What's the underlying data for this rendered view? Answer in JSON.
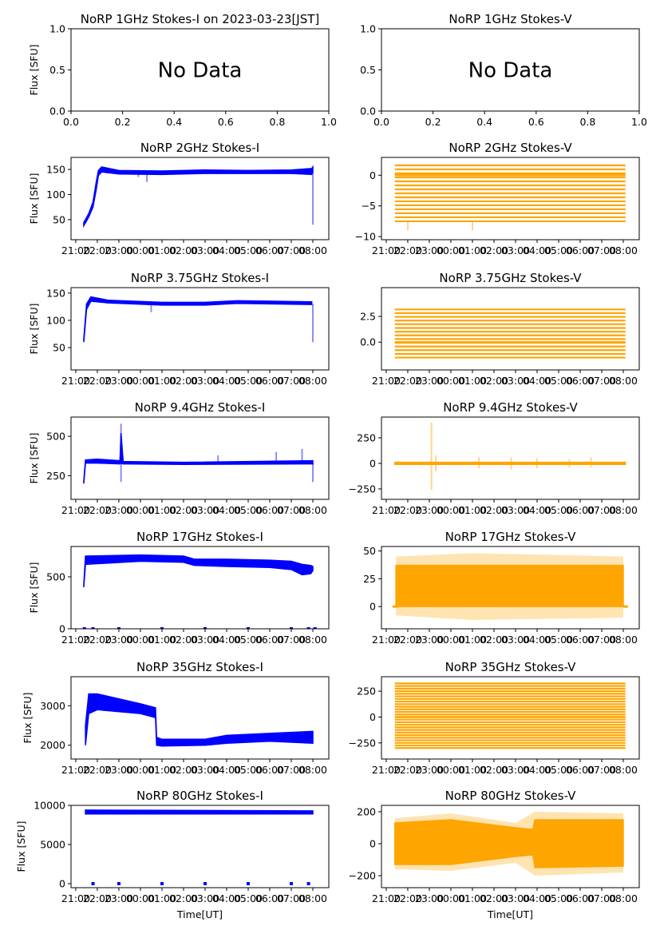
{
  "chart_data": [
    {
      "type": "scatter",
      "title": "NoRP 1GHz Stokes-I on 2023-03-23[JST]",
      "ylabel": "Flux [SFU]",
      "xlabel": "",
      "no_data": "No Data",
      "xmode": "unit",
      "xlim": [
        0,
        1
      ],
      "ylim": [
        0,
        1
      ],
      "yticks": [
        0,
        0.5,
        1
      ],
      "ytick_labels": [
        "0.0",
        "0.5",
        "1.0"
      ],
      "xticks": [
        0,
        0.2,
        0.4,
        0.6,
        0.8,
        1
      ],
      "xtick_labels": [
        "0.0",
        "0.2",
        "0.4",
        "0.6",
        "0.8",
        "1.0"
      ]
    },
    {
      "type": "scatter",
      "title": "NoRP 1GHz Stokes-V",
      "ylabel": "",
      "xlabel": "",
      "no_data": "No Data",
      "xmode": "unit",
      "xlim": [
        0,
        1
      ],
      "ylim": [
        0,
        1
      ],
      "yticks": [
        0,
        0.5,
        1
      ],
      "ytick_labels": [
        "0.0",
        "0.5",
        "1.0"
      ],
      "xticks": [
        0,
        0.2,
        0.4,
        0.6,
        0.8,
        1
      ],
      "xtick_labels": [
        "0.0",
        "0.2",
        "0.4",
        "0.6",
        "0.8",
        "1.0"
      ]
    },
    {
      "type": "scatter",
      "title": "NoRP 2GHz Stokes-I",
      "ylabel": "Flux [SFU]",
      "xlabel": "",
      "color": "#0000ff",
      "ylim": [
        10,
        174
      ],
      "yticks": [
        50,
        100,
        150
      ],
      "ytick_labels": [
        "50",
        "100",
        "150"
      ],
      "envelope": [
        [
          0.37,
          38,
          44
        ],
        [
          0.6,
          55,
          62
        ],
        [
          0.8,
          75,
          85
        ],
        [
          0.95,
          110,
          125
        ],
        [
          1.05,
          138,
          148
        ],
        [
          1.2,
          145,
          155
        ],
        [
          2,
          141,
          148
        ],
        [
          4,
          140,
          147
        ],
        [
          6,
          142,
          149
        ],
        [
          8,
          142,
          148
        ],
        [
          10,
          142,
          149
        ],
        [
          10.95,
          140,
          152
        ],
        [
          11.0,
          145,
          155
        ]
      ],
      "outliers": [
        [
          11.0,
          40,
          145
        ],
        [
          2.9,
          135,
          140
        ],
        [
          3.3,
          125,
          140
        ]
      ]
    },
    {
      "type": "scatter",
      "title": "NoRP 2GHz Stokes-V",
      "ylabel": "",
      "xlabel": "",
      "color": "#ffa500",
      "ylim": [
        -10.5,
        2.9
      ],
      "yticks": [
        -10,
        -5,
        0
      ],
      "ytick_labels": [
        "−10",
        "−5",
        "0"
      ],
      "quantized": {
        "t": [
          0.4,
          11.1
        ],
        "min": -7.5,
        "max": 2,
        "step": 0.65
      },
      "outliers": [
        [
          1.0,
          -9,
          -7.5
        ],
        [
          4,
          -9,
          -7.5
        ]
      ]
    },
    {
      "type": "scatter",
      "title": "NoRP 3.75GHz Stokes-I",
      "ylabel": "Flux [SFU]",
      "xlabel": "",
      "color": "#0000ff",
      "ylim": [
        9,
        160
      ],
      "yticks": [
        50,
        100,
        150
      ],
      "ytick_labels": [
        "50",
        "100",
        "150"
      ],
      "envelope": [
        [
          0.37,
          60,
          65
        ],
        [
          0.5,
          120,
          130
        ],
        [
          0.7,
          135,
          143
        ],
        [
          1.5,
          132,
          137
        ],
        [
          4,
          128,
          133
        ],
        [
          6,
          128,
          133
        ],
        [
          7.5,
          131,
          136
        ],
        [
          10.95,
          129,
          134
        ]
      ],
      "outliers": [
        [
          11.0,
          60,
          130
        ],
        [
          3.5,
          115,
          128
        ]
      ]
    },
    {
      "type": "scatter",
      "title": "NoRP 3.75GHz Stokes-V",
      "ylabel": "",
      "xlabel": "",
      "color": "#ffa500",
      "ylim": [
        -2.7,
        5.3
      ],
      "yticks": [
        0,
        2.5
      ],
      "ytick_labels": [
        "0.0",
        "2.5"
      ],
      "quantized": {
        "t": [
          0.4,
          11.1
        ],
        "min": -1.5,
        "max": 3.3,
        "step": 0.36
      }
    },
    {
      "type": "scatter",
      "title": "NoRP 9.4GHz Stokes-I",
      "ylabel": "Flux [SFU]",
      "xlabel": "",
      "color": "#0000ff",
      "ylim": [
        100,
        622
      ],
      "yticks": [
        250,
        500
      ],
      "ytick_labels": [
        "250",
        "500"
      ],
      "envelope": [
        [
          0.37,
          200,
          215
        ],
        [
          0.45,
          330,
          350
        ],
        [
          1,
          330,
          355
        ],
        [
          2.05,
          325,
          345
        ],
        [
          2.1,
          330,
          520
        ],
        [
          2.2,
          325,
          340
        ],
        [
          5,
          322,
          335
        ],
        [
          11.0,
          325,
          345
        ]
      ],
      "outliers": [
        [
          2.1,
          210,
          580
        ],
        [
          11.0,
          210,
          330
        ],
        [
          10.5,
          330,
          420
        ],
        [
          9.3,
          330,
          400
        ],
        [
          6.6,
          330,
          380
        ]
      ]
    },
    {
      "type": "scatter",
      "title": "NoRP 9.4GHz Stokes-V",
      "ylabel": "",
      "xlabel": "",
      "color": "#ffa500",
      "ylim": [
        -352,
        453
      ],
      "yticks": [
        -250,
        0,
        250
      ],
      "ytick_labels": [
        "−250",
        "0",
        "250"
      ],
      "envelope": [
        [
          0.4,
          -10,
          10
        ],
        [
          11.1,
          -10,
          10
        ]
      ],
      "outliers": [
        [
          2.1,
          -260,
          400
        ],
        [
          2.3,
          -80,
          80
        ],
        [
          4.3,
          -50,
          60
        ],
        [
          5.8,
          -60,
          60
        ],
        [
          7,
          -50,
          50
        ],
        [
          8.5,
          -40,
          40
        ],
        [
          9.5,
          -40,
          60
        ]
      ]
    },
    {
      "type": "scatter",
      "title": "NoRP 17GHz Stokes-I",
      "ylabel": "Flux [SFU]",
      "xlabel": "",
      "color": "#0000ff",
      "ylim": [
        0,
        792
      ],
      "yticks": [
        0,
        500
      ],
      "ytick_labels": [
        "0",
        "500"
      ],
      "envelope": [
        [
          0.37,
          400,
          420
        ],
        [
          0.45,
          620,
          700
        ],
        [
          3,
          650,
          710
        ],
        [
          5,
          640,
          700
        ],
        [
          5.5,
          610,
          670
        ],
        [
          7,
          600,
          670
        ],
        [
          9,
          590,
          660
        ],
        [
          10,
          570,
          650
        ],
        [
          10.5,
          520,
          620
        ],
        [
          10.9,
          530,
          610
        ],
        [
          11,
          560,
          600
        ]
      ],
      "zero_marks": [
        0.4,
        0.8,
        2,
        4,
        6,
        8,
        10,
        10.8,
        11.1
      ]
    },
    {
      "type": "scatter",
      "title": "NoRP 17GHz Stokes-V",
      "ylabel": "",
      "xlabel": "",
      "color": "#ffa500",
      "ylim": [
        -20,
        54
      ],
      "yticks": [
        0,
        25,
        50
      ],
      "ytick_labels": [
        "0",
        "25",
        "50"
      ],
      "envelope": [
        [
          0.45,
          0,
          37
        ],
        [
          11.0,
          0,
          37
        ]
      ],
      "outer": [
        [
          0.45,
          -8,
          45
        ],
        [
          4,
          -12,
          48
        ],
        [
          11.0,
          -10,
          45
        ]
      ],
      "edge_zero": [
        0.4,
        11.1
      ]
    },
    {
      "type": "scatter",
      "title": "NoRP 35GHz Stokes-I",
      "ylabel": "Flux [SFU]",
      "xlabel": "",
      "color": "#0000ff",
      "ylim": [
        1650,
        3735
      ],
      "yticks": [
        2000,
        3000
      ],
      "ytick_labels": [
        "2000",
        "3000"
      ],
      "envelope": [
        [
          0.45,
          2000,
          2500
        ],
        [
          0.6,
          2800,
          3300
        ],
        [
          1,
          2900,
          3300
        ],
        [
          3,
          2800,
          3050
        ],
        [
          3.7,
          2700,
          2950
        ],
        [
          3.75,
          2000,
          2200
        ],
        [
          4,
          1980,
          2150
        ],
        [
          6,
          2000,
          2150
        ],
        [
          7,
          2050,
          2250
        ],
        [
          9,
          2100,
          2300
        ],
        [
          11,
          2050,
          2350
        ]
      ]
    },
    {
      "type": "scatter",
      "title": "NoRP 35GHz Stokes-V",
      "ylabel": "",
      "xlabel": "",
      "color": "#ffa500",
      "ylim": [
        -406,
        390
      ],
      "yticks": [
        -250,
        0,
        250
      ],
      "ytick_labels": [
        "−250",
        "0",
        "250"
      ],
      "quantized": {
        "t": [
          0.4,
          11.1
        ],
        "min": -300,
        "max": 330,
        "step": 25
      }
    },
    {
      "type": "scatter",
      "title": "NoRP 80GHz Stokes-I",
      "ylabel": "Flux [SFU]",
      "xlabel": "Time[UT]",
      "color": "#0000ff",
      "ylim": [
        -510,
        10000
      ],
      "yticks": [
        0,
        5000,
        10000
      ],
      "ytick_labels": [
        "0",
        "5000",
        "10000"
      ],
      "envelope": [
        [
          0.45,
          8900,
          9400
        ],
        [
          11,
          8900,
          9300
        ]
      ],
      "zero_marks": [
        0.8,
        2,
        4,
        6,
        8,
        10,
        10.8
      ]
    },
    {
      "type": "scatter",
      "title": "NoRP 80GHz Stokes-V",
      "ylabel": "",
      "xlabel": "Time[UT]",
      "color": "#ffa500",
      "ylim": [
        -275,
        240
      ],
      "yticks": [
        -200,
        0,
        200
      ],
      "ytick_labels": [
        "−200",
        "0",
        "200"
      ],
      "envelope": [
        [
          0.4,
          -130,
          130
        ],
        [
          3,
          -130,
          150
        ],
        [
          6,
          -80,
          100
        ],
        [
          6.8,
          -70,
          90
        ],
        [
          6.9,
          -150,
          150
        ],
        [
          11,
          -140,
          150
        ]
      ],
      "outer": [
        [
          0.4,
          -160,
          160
        ],
        [
          3,
          -170,
          190
        ],
        [
          6,
          -120,
          130
        ],
        [
          6.9,
          -200,
          200
        ],
        [
          11,
          -180,
          190
        ]
      ]
    }
  ],
  "time_axis": {
    "xlim": [
      -0.22,
      11.74
    ],
    "ticks": [
      0,
      1,
      2,
      3,
      4,
      5,
      6,
      7,
      8,
      9,
      10,
      11
    ],
    "tick_labels": [
      "21:00",
      "22:00",
      "23:00",
      "00:00",
      "01:00",
      "02:00",
      "03:00",
      "04:00",
      "05:00",
      "06:00",
      "07:00",
      "08:00"
    ]
  }
}
